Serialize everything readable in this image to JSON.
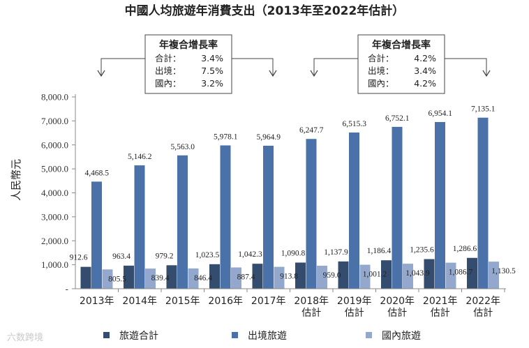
{
  "chart_data": {
    "type": "bar",
    "title": "中國人均旅遊年消費支出（2013年至2022年估計）",
    "ylabel": "人民幣元",
    "xlabel": "",
    "ylim": [
      0,
      8000
    ],
    "yticks": [
      "-",
      "1,000.0",
      "2,000.0",
      "3,000.0",
      "4,000.0",
      "5,000.0",
      "6,000.0",
      "7,000.0",
      "8,000.0"
    ],
    "categories": [
      [
        "2013年"
      ],
      [
        "2014年"
      ],
      [
        "2015年"
      ],
      [
        "2016年"
      ],
      [
        "2017年"
      ],
      [
        "2018年",
        "估計"
      ],
      [
        "2019年",
        "估計"
      ],
      [
        "2020年",
        "估計"
      ],
      [
        "2021年",
        "估計"
      ],
      [
        "2022年",
        "估計"
      ]
    ],
    "series": [
      {
        "name": "旅遊合計",
        "color": "#344d6e",
        "values": [
          912.6,
          963.4,
          979.2,
          1023.5,
          1042.3,
          1090.8,
          1137.9,
          1186.4,
          1235.6,
          1286.6
        ],
        "labels": [
          "912.6",
          "963.4",
          "979.2",
          "1,023.5",
          "1,042.3",
          "1,090.8",
          "1,137.9",
          "1,186.4",
          "1,235.6",
          "1,286.6"
        ]
      },
      {
        "name": "出境旅遊",
        "color": "#4a72a8",
        "values": [
          4468.5,
          5146.2,
          5563.0,
          5978.1,
          5964.9,
          6247.7,
          6515.3,
          6752.1,
          6954.1,
          7135.1
        ],
        "labels": [
          "4,468.5",
          "5,146.2",
          "5,563.0",
          "5,978.1",
          "5,964.9",
          "6,247.7",
          "6,515.3",
          "6,752.1",
          "6,954.1",
          "7,135.1"
        ]
      },
      {
        "name": "國內旅遊",
        "color": "#93a8cc",
        "values": [
          805.5,
          839.4,
          846.4,
          887.4,
          913.8,
          959.0,
          1001.2,
          1043.9,
          1086.7,
          1130.5
        ],
        "labels": [
          "805.5",
          "839.4",
          "846.4",
          "887.4",
          "913.8",
          "959.0",
          "1,001.2",
          "1,043.9",
          "1,086.7",
          "1,130.5"
        ]
      }
    ],
    "cagr_boxes": [
      {
        "title": "年複合增長率",
        "lines": [
          {
            "label": "合計：",
            "value": "3.4%"
          },
          {
            "label": "出境：",
            "value": "7.5%"
          },
          {
            "label": "國內：",
            "value": "3.2%"
          }
        ]
      },
      {
        "title": "年複合增長率",
        "lines": [
          {
            "label": "合計：",
            "value": "4.2%"
          },
          {
            "label": "出境：",
            "value": "3.4%"
          },
          {
            "label": "國內：",
            "value": "4.2%"
          }
        ]
      }
    ],
    "legend_position": "bottom"
  },
  "watermark": "六数跨境"
}
